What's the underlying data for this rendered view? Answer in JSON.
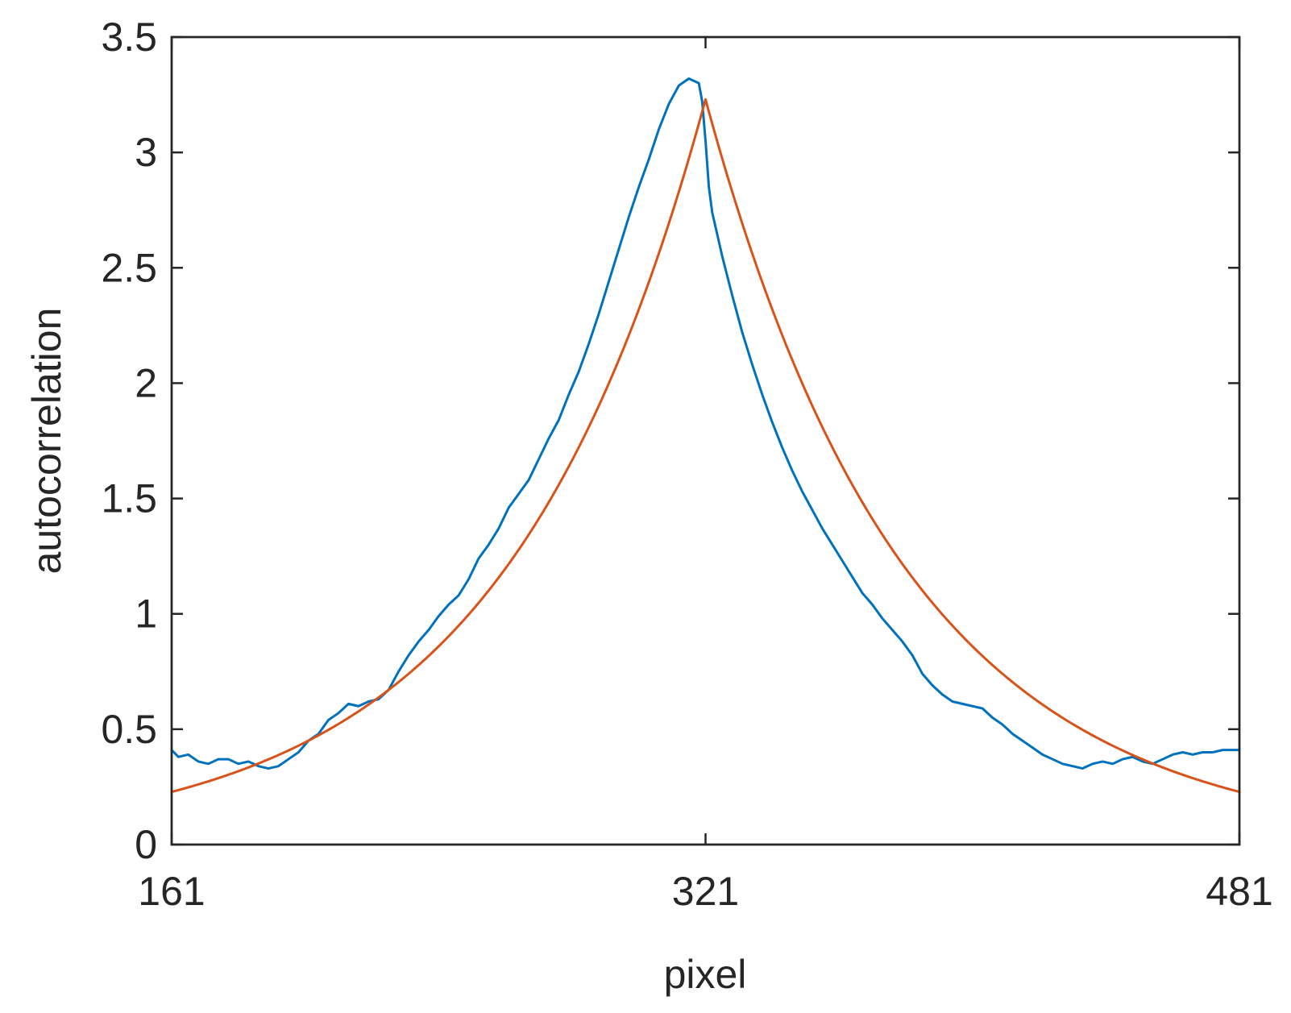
{
  "chart_data": {
    "type": "line",
    "xlabel": "pixel",
    "ylabel": "autocorrelation",
    "xlim": [
      161,
      481
    ],
    "ylim": [
      0,
      3.5
    ],
    "xticks": [
      161,
      321,
      481
    ],
    "xtick_labels": [
      "161",
      "321",
      "481"
    ],
    "yticks": [
      0,
      0.5,
      1,
      1.5,
      2,
      2.5,
      3,
      3.5
    ],
    "ytick_labels": [
      "0",
      "0.5",
      "1",
      "1.5",
      "2",
      "2.5",
      "3",
      "3.5"
    ],
    "grid": false,
    "legend": "none",
    "series": [
      {
        "color": "#0072BD",
        "x": [
          161,
          163,
          166,
          169,
          172,
          175,
          178,
          181,
          184,
          187,
          190,
          193,
          196,
          199,
          202,
          205,
          208,
          211,
          214,
          217,
          220,
          223,
          226,
          229,
          232,
          235,
          238,
          241,
          244,
          247,
          250,
          253,
          256,
          259,
          262,
          265,
          268,
          271,
          274,
          277,
          280,
          283,
          286,
          289,
          292,
          295,
          298,
          301,
          304,
          307,
          310,
          313,
          316,
          319,
          320,
          321,
          322,
          323,
          326,
          329,
          332,
          335,
          338,
          341,
          344,
          347,
          350,
          353,
          356,
          359,
          362,
          365,
          368,
          371,
          374,
          377,
          380,
          383,
          386,
          389,
          392,
          395,
          398,
          401,
          404,
          407,
          410,
          413,
          416,
          419,
          422,
          425,
          428,
          431,
          434,
          437,
          440,
          443,
          446,
          449,
          452,
          455,
          458,
          461,
          464,
          467,
          470,
          473,
          476,
          479,
          481
        ],
        "y": [
          0.41,
          0.38,
          0.39,
          0.36,
          0.35,
          0.37,
          0.37,
          0.35,
          0.36,
          0.34,
          0.33,
          0.34,
          0.37,
          0.4,
          0.45,
          0.48,
          0.54,
          0.57,
          0.61,
          0.6,
          0.62,
          0.63,
          0.67,
          0.75,
          0.82,
          0.88,
          0.93,
          0.99,
          1.04,
          1.08,
          1.15,
          1.24,
          1.3,
          1.37,
          1.46,
          1.52,
          1.58,
          1.67,
          1.76,
          1.84,
          1.95,
          2.05,
          2.17,
          2.3,
          2.44,
          2.58,
          2.72,
          2.85,
          2.97,
          3.1,
          3.21,
          3.29,
          3.32,
          3.3,
          3.22,
          3.05,
          2.85,
          2.74,
          2.55,
          2.38,
          2.22,
          2.08,
          1.95,
          1.83,
          1.72,
          1.62,
          1.53,
          1.45,
          1.37,
          1.3,
          1.23,
          1.16,
          1.09,
          1.04,
          0.98,
          0.93,
          0.88,
          0.82,
          0.74,
          0.69,
          0.65,
          0.62,
          0.61,
          0.6,
          0.59,
          0.55,
          0.52,
          0.48,
          0.45,
          0.42,
          0.39,
          0.37,
          0.35,
          0.34,
          0.33,
          0.35,
          0.36,
          0.35,
          0.37,
          0.38,
          0.36,
          0.35,
          0.37,
          0.39,
          0.4,
          0.39,
          0.4,
          0.4,
          0.41,
          0.41,
          0.41
        ]
      },
      {
        "color": "#D95319",
        "model": "exponential",
        "peak_x": 321,
        "peak_y": 3.23,
        "decay_length": 60.4
      }
    ]
  }
}
